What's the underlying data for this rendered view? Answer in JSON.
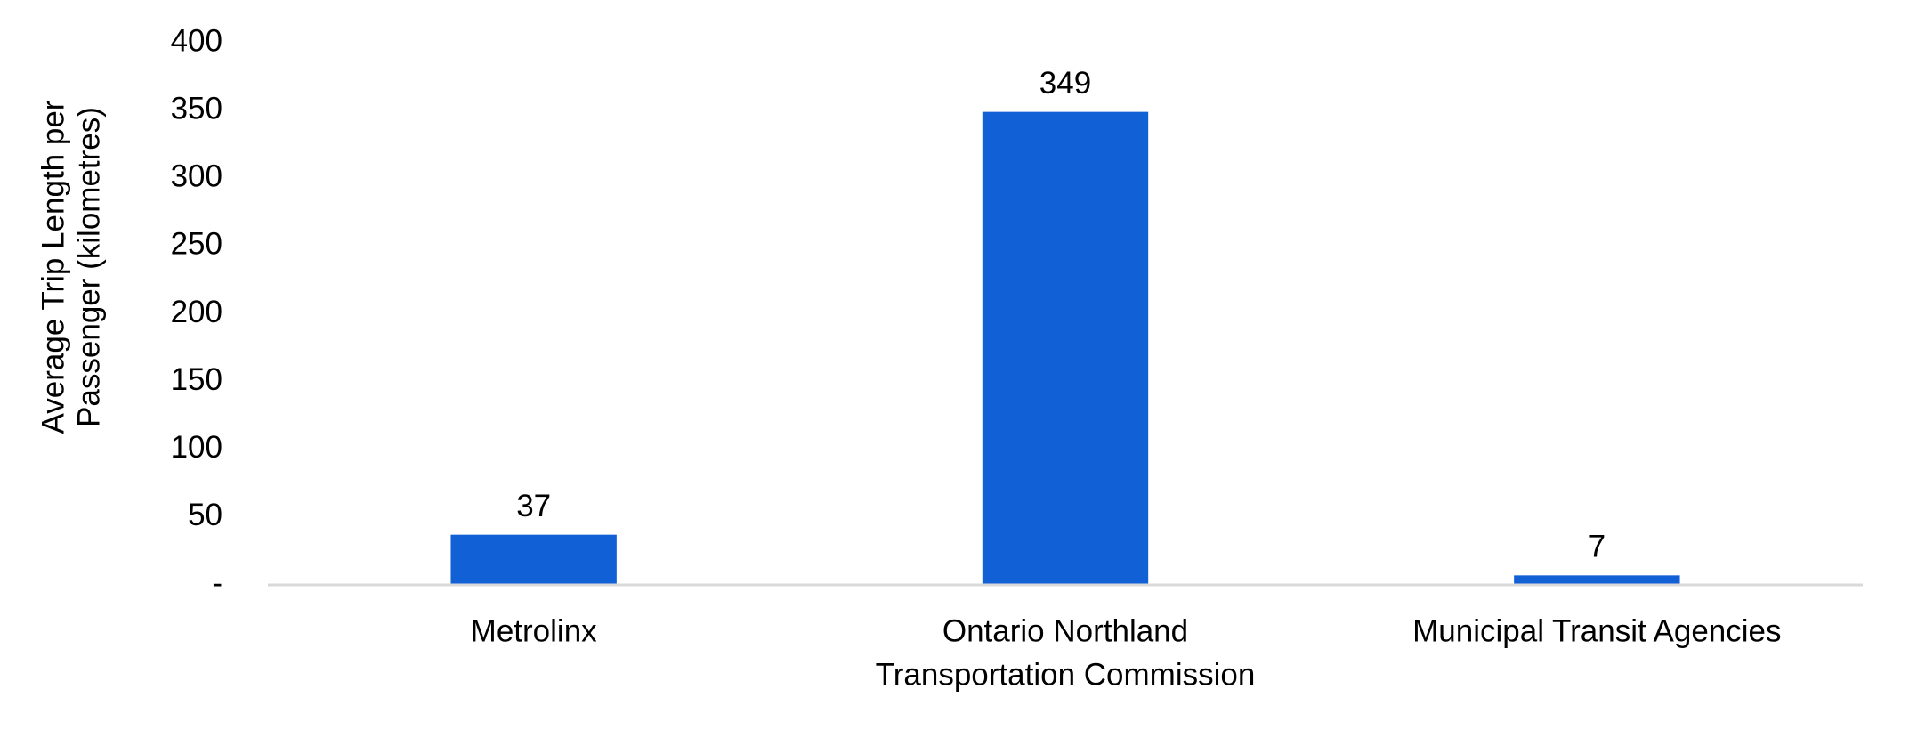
{
  "chart_data": {
    "type": "bar",
    "y_label": [
      "Average Trip Length per",
      "Passenger (kilometres)"
    ],
    "categories": [
      [
        "Metrolinx"
      ],
      [
        "Ontario Northland",
        "Transportation Commission"
      ],
      [
        "Municipal Transit Agencies"
      ]
    ],
    "values": [
      37,
      349,
      7
    ],
    "color": "#1160d6",
    "ylim": [
      0,
      400
    ],
    "yticks": [
      {
        "value": 0,
        "label": "-"
      },
      50,
      100,
      150,
      200,
      250,
      300,
      350,
      400
    ],
    "grid": false
  }
}
